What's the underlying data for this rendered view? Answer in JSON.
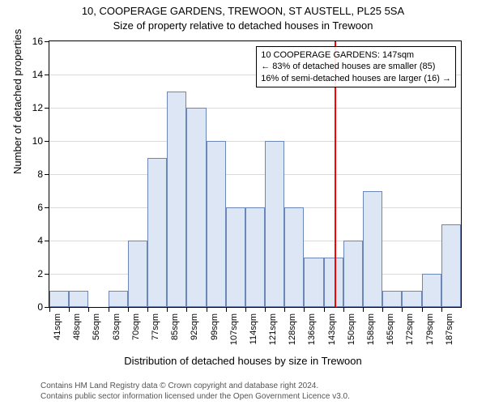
{
  "titles": {
    "line1": "10, COOPERAGE GARDENS, TREWOON, ST AUSTELL, PL25 5SA",
    "line2": "Size of property relative to detached houses in Trewoon"
  },
  "chart": {
    "type": "histogram",
    "ylabel": "Number of detached properties",
    "xlabel": "Distribution of detached houses by size in Trewoon",
    "ylim": [
      0,
      16
    ],
    "ytick_step": 2,
    "background_color": "#ffffff",
    "grid_color": "#d9d9d9",
    "axis_color": "#000000",
    "bar_fill": "#dde6f5",
    "bar_border": "#6d86b8",
    "bar_width": 1.0,
    "xticks": [
      "41sqm",
      "48sqm",
      "56sqm",
      "63sqm",
      "70sqm",
      "77sqm",
      "85sqm",
      "92sqm",
      "99sqm",
      "107sqm",
      "114sqm",
      "121sqm",
      "128sqm",
      "136sqm",
      "143sqm",
      "150sqm",
      "158sqm",
      "165sqm",
      "172sqm",
      "179sqm",
      "187sqm"
    ],
    "values": [
      1,
      1,
      0,
      1,
      4,
      9,
      13,
      12,
      10,
      6,
      6,
      10,
      6,
      3,
      3,
      4,
      7,
      1,
      1,
      2,
      5
    ],
    "marker": {
      "position_sqm": 147,
      "xmin_sqm": 41,
      "xmax_sqm": 194,
      "color": "#ff0000"
    },
    "annotation": {
      "lines": [
        "10 COOPERAGE GARDENS: 147sqm",
        "← 83% of detached houses are smaller (85)",
        "16% of semi-detached houses are larger (16) →"
      ],
      "border_color": "#000000",
      "bg_color": "#ffffff"
    },
    "title_fontsize": 13,
    "label_fontsize": 13,
    "tick_fontsize": 12,
    "xtick_fontsize": 11
  },
  "footer": {
    "line1": "Contains HM Land Registry data © Crown copyright and database right 2024.",
    "line2": "Contains public sector information licensed under the Open Government Licence v3.0."
  }
}
